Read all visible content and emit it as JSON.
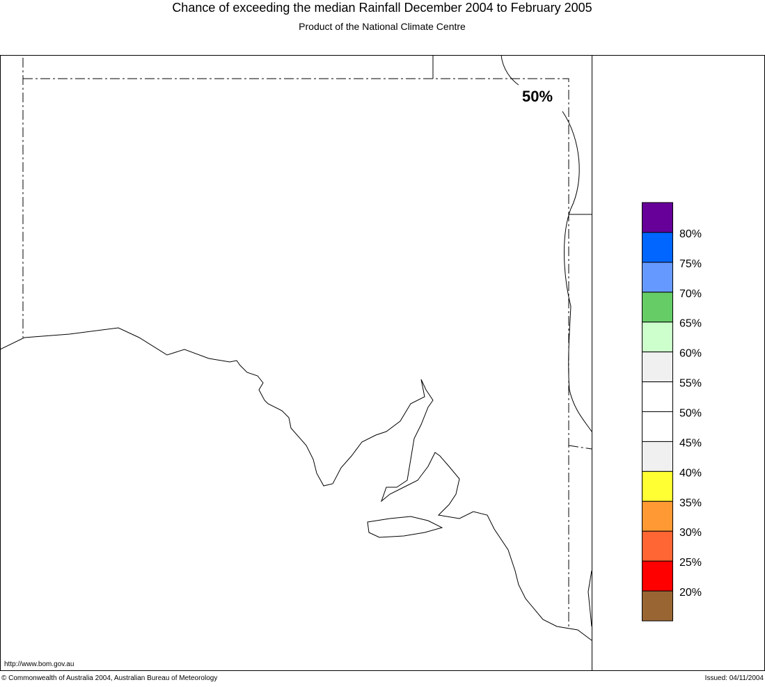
{
  "header": {
    "title": "Chance of exceeding the median Rainfall December 2004 to February 2005",
    "subtitle": "Product of the National Climate Centre"
  },
  "map": {
    "contour_label": "50%"
  },
  "legend": {
    "colors": [
      "#660099",
      "#0066ff",
      "#6699ff",
      "#66cc66",
      "#ccffcc",
      "#f0f0f0",
      "#ffffff",
      "#ffffff",
      "#f0f0f0",
      "#ffff33",
      "#ff9933",
      "#ff6633",
      "#ff0000",
      "#996633"
    ],
    "labels": [
      "80%",
      "75%",
      "70%",
      "65%",
      "60%",
      "55%",
      "50%",
      "45%",
      "40%",
      "35%",
      "30%",
      "25%",
      "20%"
    ]
  },
  "footer": {
    "url": "http://www.bom.gov.au",
    "copyright": "© Commonwealth of Australia 2004, Australian Bureau of Meteorology",
    "issued": "Issued: 04/11/2004"
  }
}
